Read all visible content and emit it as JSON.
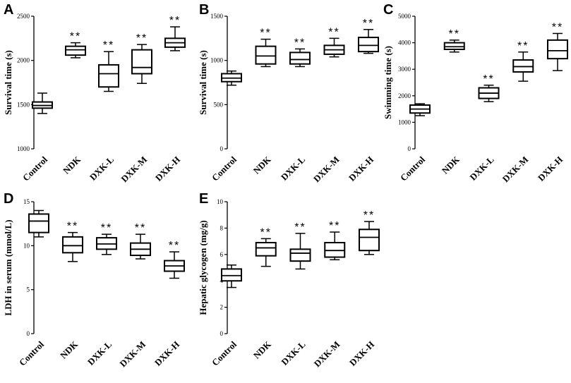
{
  "figure_colors": {
    "ink": "#000000",
    "background": "#ffffff"
  },
  "chart_data": [
    {
      "panel": "A",
      "type": "box",
      "ylabel": "Survival time (s)",
      "ylim": [
        1000,
        2500
      ],
      "yticks": [
        1000,
        1500,
        2000,
        2500
      ],
      "categories": [
        "Control",
        "NDK",
        "DXK-L",
        "DXK-M",
        "DXK-H"
      ],
      "boxes": [
        {
          "min": 1400,
          "q1": 1460,
          "median": 1490,
          "q3": 1530,
          "max": 1630,
          "sig": ""
        },
        {
          "min": 2030,
          "q1": 2060,
          "median": 2120,
          "q3": 2160,
          "max": 2200,
          "sig": "**"
        },
        {
          "min": 1650,
          "q1": 1700,
          "median": 1850,
          "q3": 1950,
          "max": 2100,
          "sig": "**"
        },
        {
          "min": 1740,
          "q1": 1850,
          "median": 1920,
          "q3": 2120,
          "max": 2180,
          "sig": "**"
        },
        {
          "min": 2110,
          "q1": 2150,
          "median": 2200,
          "q3": 2250,
          "max": 2380,
          "sig": "**"
        }
      ]
    },
    {
      "panel": "B",
      "type": "box",
      "ylabel": "Survival time (s)",
      "ylim": [
        0,
        1500
      ],
      "yticks": [
        0,
        500,
        1000,
        1500
      ],
      "categories": [
        "Control",
        "NDK",
        "DXK-L",
        "DXK-M",
        "DXK-H"
      ],
      "boxes": [
        {
          "min": 720,
          "q1": 760,
          "median": 800,
          "q3": 850,
          "max": 880,
          "sig": ""
        },
        {
          "min": 930,
          "q1": 960,
          "median": 1050,
          "q3": 1160,
          "max": 1240,
          "sig": "**"
        },
        {
          "min": 930,
          "q1": 960,
          "median": 1010,
          "q3": 1090,
          "max": 1130,
          "sig": "**"
        },
        {
          "min": 1040,
          "q1": 1070,
          "median": 1120,
          "q3": 1170,
          "max": 1250,
          "sig": "**"
        },
        {
          "min": 1080,
          "q1": 1100,
          "median": 1170,
          "q3": 1260,
          "max": 1350,
          "sig": "**"
        }
      ]
    },
    {
      "panel": "C",
      "type": "box",
      "ylabel": "Swimming time (s)",
      "ylim": [
        0,
        5000
      ],
      "yticks": [
        0,
        1000,
        2000,
        3000,
        4000,
        5000
      ],
      "categories": [
        "Control",
        "NDK",
        "DXK-L",
        "DXK-M",
        "DXK-H"
      ],
      "boxes": [
        {
          "min": 1250,
          "q1": 1350,
          "median": 1500,
          "q3": 1650,
          "max": 1700,
          "sig": ""
        },
        {
          "min": 3650,
          "q1": 3750,
          "median": 3850,
          "q3": 4000,
          "max": 4100,
          "sig": "**"
        },
        {
          "min": 1780,
          "q1": 1900,
          "median": 2100,
          "q3": 2300,
          "max": 2400,
          "sig": "**"
        },
        {
          "min": 2550,
          "q1": 2900,
          "median": 3100,
          "q3": 3350,
          "max": 3650,
          "sig": "**"
        },
        {
          "min": 2950,
          "q1": 3400,
          "median": 3700,
          "q3": 4100,
          "max": 4350,
          "sig": "**"
        }
      ]
    },
    {
      "panel": "D",
      "type": "box",
      "ylabel": "LDH in serum (mmol/L)",
      "ylim": [
        0,
        15
      ],
      "yticks": [
        0,
        5,
        10,
        15
      ],
      "categories": [
        "Control",
        "NDK",
        "DXK-L",
        "DXK-M",
        "DXK-H"
      ],
      "boxes": [
        {
          "min": 11.0,
          "q1": 11.5,
          "median": 12.8,
          "q3": 13.6,
          "max": 14.0,
          "sig": ""
        },
        {
          "min": 8.2,
          "q1": 9.2,
          "median": 10.0,
          "q3": 11.0,
          "max": 11.5,
          "sig": "**"
        },
        {
          "min": 9.0,
          "q1": 9.6,
          "median": 10.2,
          "q3": 10.9,
          "max": 11.3,
          "sig": "**"
        },
        {
          "min": 8.5,
          "q1": 8.9,
          "median": 9.6,
          "q3": 10.3,
          "max": 11.3,
          "sig": "**"
        },
        {
          "min": 6.3,
          "q1": 7.1,
          "median": 7.7,
          "q3": 8.3,
          "max": 9.3,
          "sig": "**"
        }
      ]
    },
    {
      "panel": "E",
      "type": "box",
      "ylabel": "Hepatic glycogen (mg/g)",
      "ylim": [
        0,
        10
      ],
      "yticks": [
        0,
        2,
        4,
        6,
        8,
        10
      ],
      "categories": [
        "Control",
        "NDK",
        "DXK-L",
        "DXK-M",
        "DXK-H"
      ],
      "boxes": [
        {
          "min": 3.5,
          "q1": 4.0,
          "median": 4.4,
          "q3": 4.9,
          "max": 5.2,
          "sig": ""
        },
        {
          "min": 5.1,
          "q1": 5.9,
          "median": 6.5,
          "q3": 6.9,
          "max": 7.2,
          "sig": "**"
        },
        {
          "min": 4.9,
          "q1": 5.5,
          "median": 6.1,
          "q3": 6.4,
          "max": 7.6,
          "sig": "**"
        },
        {
          "min": 5.6,
          "q1": 5.8,
          "median": 6.3,
          "q3": 6.9,
          "max": 7.7,
          "sig": "**"
        },
        {
          "min": 6.0,
          "q1": 6.3,
          "median": 7.3,
          "q3": 7.9,
          "max": 8.5,
          "sig": "**"
        }
      ]
    }
  ]
}
